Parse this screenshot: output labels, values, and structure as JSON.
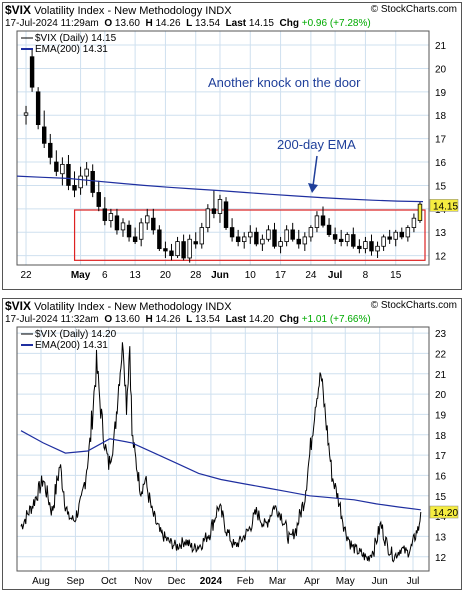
{
  "copyright": "© StockCharts.com",
  "colors": {
    "panel_bg": "#ffffff",
    "plot_bg": "#ffffff",
    "grid": "#cfe0ef",
    "candle": "#000000",
    "ema": "#1f2fa0",
    "box": "#dd2222",
    "last_label": "#f5ec40",
    "pos_change": "#00aa00"
  },
  "charts": [
    {
      "symbol": "$VIX",
      "name": "Volatility Index - New Methodology",
      "exchange": "INDX",
      "date": "17-Jul-2024 11:29am",
      "quote": {
        "o_label": "O",
        "o": "13.60",
        "h_label": "H",
        "h": "14.26",
        "l_label": "L",
        "l": "13.54",
        "last_label": "Last",
        "last": "14.15",
        "chg_label": "Chg",
        "chg": "+0.96 (+7.28%)"
      },
      "legend": {
        "series": "$VIX (Daily) 14.15",
        "ema": "EMA(200) 14.31"
      },
      "annotations": {
        "top": "Another knock on the door",
        "ema": "200-day EMA"
      },
      "chart_data": {
        "type": "candlestick",
        "x_ticks": [
          "22",
          "May",
          "6",
          "13",
          "20",
          "28",
          "Jun",
          "10",
          "17",
          "24",
          "Jul",
          "8",
          "15"
        ],
        "y_ticks": [
          12,
          13,
          14,
          15,
          16,
          17,
          18,
          19,
          20,
          21
        ],
        "ylim": [
          11.6,
          21.6
        ],
        "last_value_label": "14.15",
        "box": {
          "y_low": 11.8,
          "y_high": 13.95
        },
        "ema": [
          15.4,
          15.35,
          15.3,
          15.2,
          15.1,
          15.0,
          14.92,
          14.85,
          14.78,
          14.7,
          14.62,
          14.55,
          14.48,
          14.42,
          14.37,
          14.33,
          14.31
        ],
        "candles": [
          [
            18.0,
            18.4,
            17.6,
            18.1
          ],
          [
            20.5,
            20.8,
            19.0,
            19.2
          ],
          [
            19.0,
            19.2,
            17.4,
            17.6
          ],
          [
            17.5,
            18.2,
            16.6,
            16.8
          ],
          [
            16.8,
            17.2,
            15.9,
            16.2
          ],
          [
            16.0,
            16.5,
            15.4,
            15.6
          ],
          [
            15.5,
            16.2,
            15.0,
            15.9
          ],
          [
            15.9,
            16.3,
            14.8,
            15.0
          ],
          [
            15.0,
            15.6,
            14.5,
            14.8
          ],
          [
            14.9,
            15.8,
            14.6,
            15.4
          ],
          [
            15.4,
            16.0,
            15.0,
            15.7
          ],
          [
            15.6,
            15.9,
            14.5,
            14.7
          ],
          [
            14.7,
            15.2,
            13.9,
            14.1
          ],
          [
            14.0,
            14.5,
            13.3,
            13.5
          ],
          [
            13.5,
            14.0,
            13.2,
            13.8
          ],
          [
            13.7,
            14.0,
            12.9,
            13.1
          ],
          [
            13.1,
            13.6,
            12.8,
            13.4
          ],
          [
            13.3,
            13.5,
            12.6,
            12.8
          ],
          [
            12.8,
            13.2,
            12.5,
            12.6
          ],
          [
            12.7,
            13.6,
            12.4,
            13.4
          ],
          [
            13.4,
            14.0,
            13.1,
            13.7
          ],
          [
            13.6,
            14.0,
            12.9,
            13.1
          ],
          [
            13.1,
            13.3,
            12.2,
            12.3
          ],
          [
            12.3,
            12.6,
            11.9,
            12.2
          ],
          [
            12.2,
            12.5,
            11.8,
            12.0
          ],
          [
            12.0,
            12.8,
            11.9,
            12.6
          ],
          [
            12.6,
            12.9,
            11.8,
            11.9
          ],
          [
            11.9,
            12.9,
            11.7,
            12.7
          ],
          [
            12.6,
            13.0,
            12.3,
            12.5
          ],
          [
            12.5,
            13.4,
            12.3,
            13.2
          ],
          [
            13.2,
            14.2,
            13.0,
            14.0
          ],
          [
            14.0,
            14.8,
            13.6,
            13.8
          ],
          [
            13.8,
            14.6,
            13.4,
            14.4
          ],
          [
            14.3,
            14.5,
            13.1,
            13.2
          ],
          [
            13.2,
            13.6,
            12.6,
            12.8
          ],
          [
            12.8,
            13.1,
            12.4,
            12.6
          ],
          [
            12.6,
            13.0,
            12.3,
            12.8
          ],
          [
            12.8,
            13.3,
            12.5,
            13.0
          ],
          [
            13.0,
            13.2,
            12.4,
            12.5
          ],
          [
            12.5,
            12.9,
            12.2,
            12.7
          ],
          [
            12.7,
            13.3,
            12.6,
            13.1
          ],
          [
            13.1,
            13.4,
            12.3,
            12.4
          ],
          [
            12.4,
            12.8,
            12.1,
            12.6
          ],
          [
            12.6,
            13.3,
            12.4,
            13.1
          ],
          [
            13.1,
            13.4,
            12.6,
            12.7
          ],
          [
            12.7,
            13.1,
            12.3,
            12.5
          ],
          [
            12.5,
            13.0,
            12.2,
            12.8
          ],
          [
            12.8,
            13.3,
            12.6,
            13.2
          ],
          [
            13.2,
            13.9,
            13.0,
            13.7
          ],
          [
            13.7,
            14.1,
            13.2,
            13.3
          ],
          [
            13.3,
            13.6,
            12.8,
            12.9
          ],
          [
            12.9,
            13.2,
            12.5,
            12.7
          ],
          [
            12.7,
            13.1,
            12.4,
            12.6
          ],
          [
            12.6,
            13.0,
            12.4,
            12.9
          ],
          [
            12.9,
            13.2,
            12.3,
            12.4
          ],
          [
            12.4,
            12.7,
            12.1,
            12.3
          ],
          [
            12.3,
            12.8,
            12.1,
            12.6
          ],
          [
            12.6,
            12.9,
            12.0,
            12.2
          ],
          [
            12.2,
            12.6,
            11.9,
            12.4
          ],
          [
            12.4,
            12.9,
            12.2,
            12.8
          ],
          [
            12.8,
            13.1,
            12.5,
            12.7
          ],
          [
            12.7,
            13.1,
            12.4,
            13.0
          ],
          [
            13.0,
            13.2,
            12.7,
            12.8
          ],
          [
            12.8,
            13.3,
            12.6,
            13.2
          ],
          [
            13.2,
            13.8,
            13.0,
            13.6
          ],
          [
            13.5,
            14.3,
            13.4,
            14.2
          ]
        ]
      }
    },
    {
      "symbol": "$VIX",
      "name": "Volatility Index - New Methodology",
      "exchange": "INDX",
      "date": "17-Jul-2024 11:32am",
      "quote": {
        "o_label": "O",
        "o": "13.60",
        "h_label": "H",
        "h": "14.26",
        "l_label": "L",
        "l": "13.54",
        "last_label": "Last",
        "last": "14.20",
        "chg_label": "Chg",
        "chg": "+1.01 (+7.66%)"
      },
      "legend": {
        "series": "$VIX (Daily) 14.20",
        "ema": "EMA(200) 14.31"
      },
      "chart_data": {
        "type": "line",
        "x_ticks": [
          "Aug",
          "Sep",
          "Oct",
          "Nov",
          "Dec",
          "2024",
          "Feb",
          "Mar",
          "Apr",
          "May",
          "Jun",
          "Jul"
        ],
        "x_tick_days": [
          18,
          49,
          79,
          110,
          140,
          171,
          202,
          231,
          262,
          292,
          323,
          353
        ],
        "y_ticks": [
          12,
          13,
          14,
          15,
          16,
          17,
          18,
          19,
          20,
          21,
          22,
          23
        ],
        "ylim": [
          11.3,
          23.3
        ],
        "last_value_label": "14.20",
        "series": [
          {
            "x": [
              0,
              10,
              20,
              28,
              35,
              42,
              48,
              55,
              62,
              68,
              74,
              79,
              84,
              88,
              92,
              95,
              98,
              100,
              104,
              108,
              112,
              118,
              125,
              132,
              140,
              148,
              155,
              162,
              170,
              178,
              186,
              192,
              198,
              205,
              212,
              220,
              228,
              235,
              242,
              248,
              255,
              260,
              265,
              270,
              275,
              280,
              286,
              292,
              298,
              305,
              312,
              318,
              324,
              330,
              336,
              342,
              348,
              352,
              356,
              358,
              360
            ],
            "y": [
              13.5,
              14.5,
              15.8,
              14.2,
              16.5,
              14.0,
              13.8,
              14.8,
              17.5,
              21.5,
              18.0,
              16.5,
              17.8,
              20.5,
              22.6,
              19.5,
              22.5,
              18.0,
              16.5,
              15.2,
              15.8,
              14.2,
              13.2,
              12.8,
              12.5,
              12.8,
              12.4,
              12.6,
              13.2,
              14.5,
              13.2,
              12.5,
              12.8,
              13.3,
              14.2,
              13.5,
              14.5,
              14.0,
              12.8,
              13.4,
              14.8,
              17.0,
              19.5,
              21.0,
              18.5,
              16.0,
              14.8,
              13.3,
              12.5,
              12.2,
              11.9,
              12.4,
              13.6,
              12.5,
              12.0,
              12.4,
              12.2,
              12.5,
              13.2,
              13.4,
              14.2
            ]
          },
          {
            "x": [
              0,
              20,
              40,
              60,
              80,
              100,
              120,
              140,
              160,
              180,
              200,
              220,
              240,
              260,
              280,
              300,
              320,
              340,
              360
            ],
            "y": [
              18.2,
              17.6,
              17.1,
              17.2,
              17.8,
              17.6,
              17.1,
              16.6,
              16.1,
              15.8,
              15.6,
              15.4,
              15.2,
              15.0,
              14.9,
              14.8,
              14.6,
              14.45,
              14.31
            ]
          }
        ]
      }
    }
  ]
}
